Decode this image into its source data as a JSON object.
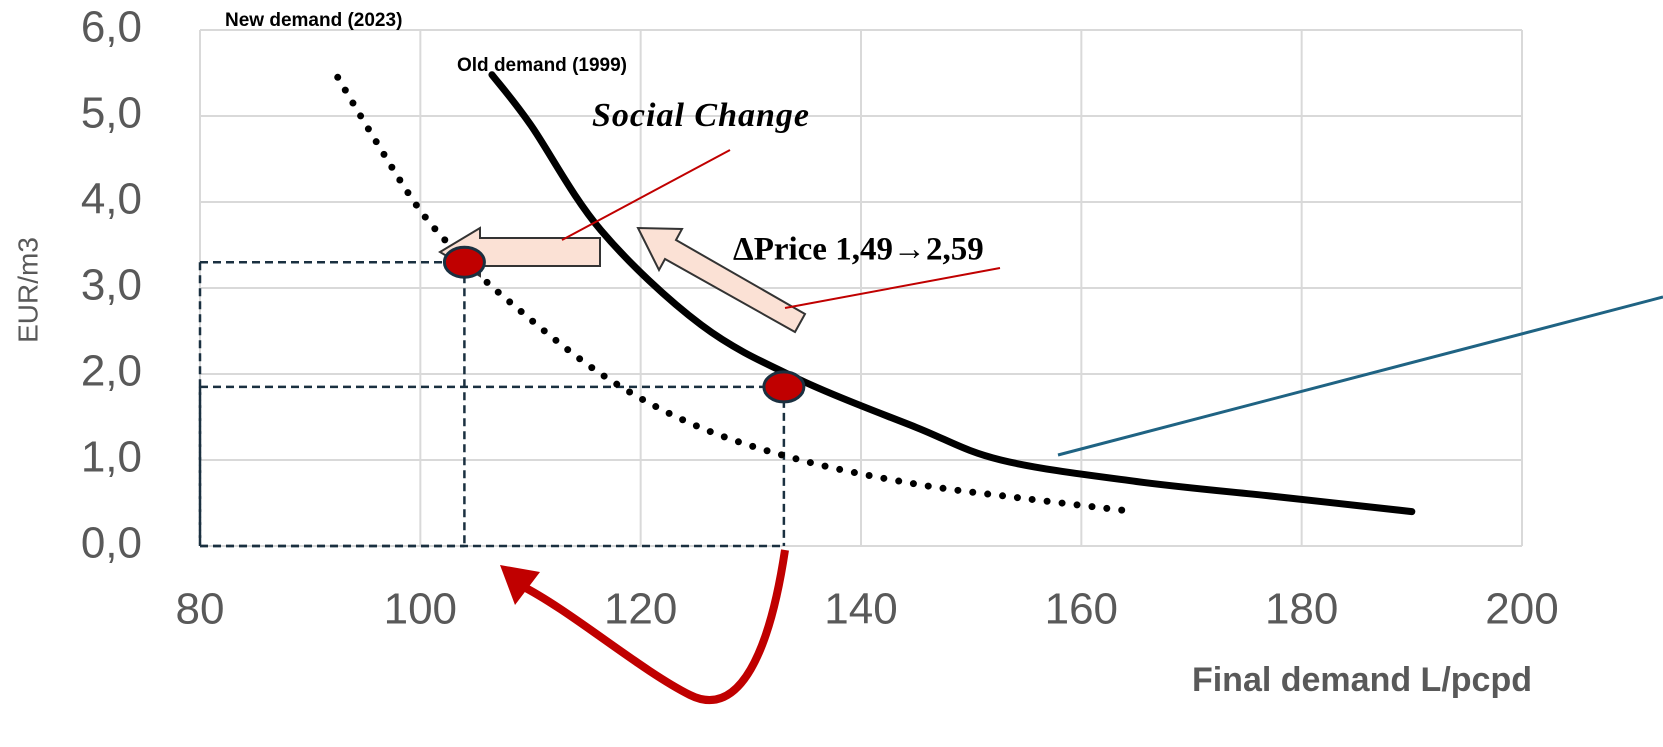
{
  "chart_data": {
    "type": "line",
    "xlabel": "Final demand L/pcpd",
    "ylabel": "EUR/m3",
    "xlim": [
      80,
      200
    ],
    "ylim": [
      0,
      6
    ],
    "xticks": [
      80,
      100,
      120,
      140,
      160,
      180,
      200
    ],
    "yticks": [
      {
        "value": 0,
        "label": "0,0"
      },
      {
        "value": 1,
        "label": "1,0"
      },
      {
        "value": 2,
        "label": "2,0"
      },
      {
        "value": 3,
        "label": "3,0"
      },
      {
        "value": 4,
        "label": "4,0"
      },
      {
        "value": 5,
        "label": "5,0"
      },
      {
        "value": 6,
        "label": "6,0"
      }
    ],
    "grid": true,
    "series": [
      {
        "name": "Old demand (1999)",
        "color": "#000000",
        "style": "solid",
        "x": [
          106.5,
          110,
          116.4,
          125.5,
          134.5,
          145,
          152.7,
          165,
          178,
          190
        ],
        "values": [
          5.48,
          4.9,
          3.67,
          2.57,
          1.93,
          1.38,
          1.0,
          0.75,
          0.57,
          0.4
        ]
      },
      {
        "name": "New demand  (2023)",
        "color": "#000000",
        "style": "dotted",
        "x": [
          92.5,
          96,
          100,
          103.8,
          108,
          116.4,
          125,
          134.5,
          145,
          155,
          164.8
        ],
        "values": [
          5.45,
          4.7,
          3.9,
          3.35,
          2.85,
          2.0,
          1.4,
          1.0,
          0.72,
          0.55,
          0.4
        ]
      }
    ],
    "points": [
      {
        "x": 104,
        "y": 3.3
      },
      {
        "x": 133,
        "y": 1.85
      }
    ],
    "point_color": "#c00000",
    "annotations": [
      "Social Change",
      "ΔPrice 1,49→2,59"
    ]
  }
}
